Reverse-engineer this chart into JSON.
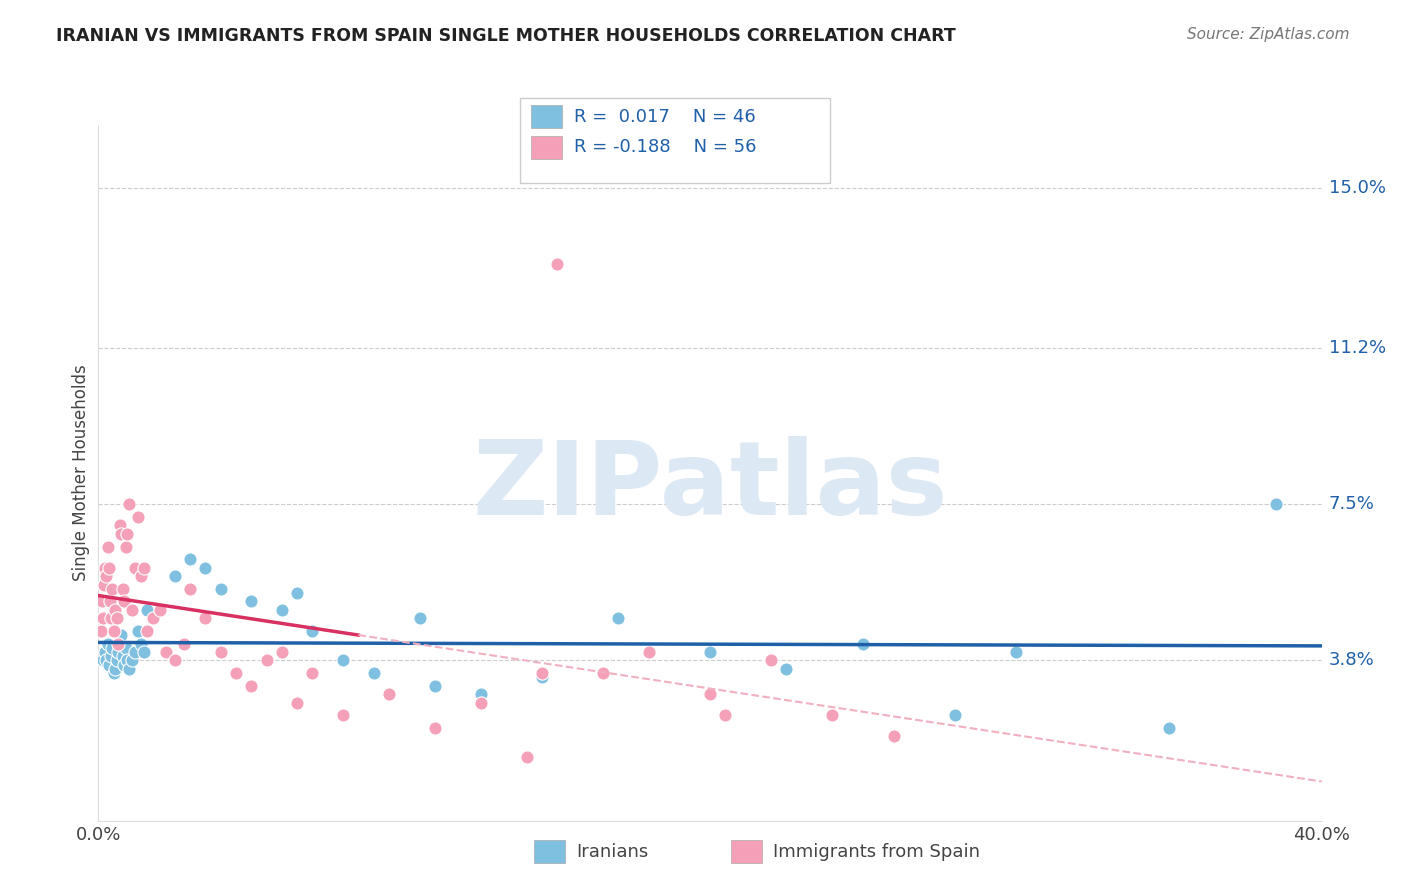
{
  "title": "IRANIAN VS IMMIGRANTS FROM SPAIN SINGLE MOTHER HOUSEHOLDS CORRELATION CHART",
  "source": "Source: ZipAtlas.com",
  "ylabel": "Single Mother Households",
  "iranians_R": 0.017,
  "iranians_N": 46,
  "spain_R": -0.188,
  "spain_N": 56,
  "xlim": [
    0,
    40
  ],
  "ylim": [
    0,
    16.5
  ],
  "ytick_vals": [
    3.8,
    7.5,
    11.2,
    15.0
  ],
  "ytick_labels": [
    "3.8%",
    "7.5%",
    "11.2%",
    "15.0%"
  ],
  "xtick_vals": [
    0,
    40
  ],
  "xtick_labels": [
    "0.0%",
    "40.0%"
  ],
  "blue_scatter_color": "#7fbfdf",
  "pink_scatter_color": "#f4a0b8",
  "blue_line_color": "#2060a8",
  "pink_line_color": "#d83060",
  "pink_dash_color": "#f0b0c0",
  "right_label_color": "#2060a8",
  "watermark_color": "#dde8f5",
  "iranians_x": [
    0.15,
    0.2,
    0.25,
    0.3,
    0.35,
    0.4,
    0.45,
    0.5,
    0.55,
    0.6,
    0.65,
    0.7,
    0.75,
    0.8,
    0.85,
    0.9,
    0.95,
    1.0,
    1.1,
    1.2,
    1.3,
    1.4,
    1.5,
    1.6,
    2.5,
    3.0,
    3.5,
    4.0,
    5.0,
    6.0,
    6.5,
    7.0,
    8.0,
    9.0,
    10.5,
    11.0,
    12.5,
    14.5,
    17.0,
    20.0,
    22.5,
    25.0,
    28.0,
    30.0,
    35.0,
    38.5
  ],
  "iranians_y": [
    3.8,
    4.0,
    3.8,
    4.2,
    3.7,
    3.9,
    4.1,
    3.5,
    3.6,
    3.8,
    4.0,
    4.2,
    4.4,
    3.9,
    3.7,
    4.1,
    3.8,
    3.6,
    3.8,
    4.0,
    4.5,
    4.2,
    4.0,
    5.0,
    5.8,
    6.2,
    6.0,
    5.5,
    5.2,
    5.0,
    5.4,
    4.5,
    3.8,
    3.5,
    4.8,
    3.2,
    3.0,
    3.4,
    4.8,
    4.0,
    3.6,
    4.2,
    2.5,
    4.0,
    2.2,
    7.5
  ],
  "spain_x": [
    0.08,
    0.12,
    0.15,
    0.18,
    0.22,
    0.26,
    0.3,
    0.34,
    0.38,
    0.42,
    0.46,
    0.5,
    0.55,
    0.6,
    0.65,
    0.7,
    0.75,
    0.8,
    0.85,
    0.9,
    0.95,
    1.0,
    1.1,
    1.2,
    1.3,
    1.4,
    1.5,
    1.6,
    1.8,
    2.0,
    2.2,
    2.5,
    2.8,
    3.0,
    3.5,
    4.0,
    4.5,
    5.0,
    5.5,
    6.0,
    6.5,
    7.0,
    8.0,
    9.5,
    11.0,
    12.5,
    14.0,
    15.0,
    16.5,
    18.0,
    20.5,
    22.0,
    24.0,
    26.0,
    14.5,
    20.0
  ],
  "spain_y": [
    4.5,
    5.2,
    4.8,
    5.6,
    6.0,
    5.8,
    6.5,
    6.0,
    5.2,
    4.8,
    5.5,
    4.5,
    5.0,
    4.8,
    4.2,
    7.0,
    6.8,
    5.5,
    5.2,
    6.5,
    6.8,
    7.5,
    5.0,
    6.0,
    7.2,
    5.8,
    6.0,
    4.5,
    4.8,
    5.0,
    4.0,
    3.8,
    4.2,
    5.5,
    4.8,
    4.0,
    3.5,
    3.2,
    3.8,
    4.0,
    2.8,
    3.5,
    2.5,
    3.0,
    2.2,
    2.8,
    1.5,
    13.2,
    3.5,
    4.0,
    2.5,
    3.8,
    2.5,
    2.0,
    3.5,
    3.0
  ]
}
